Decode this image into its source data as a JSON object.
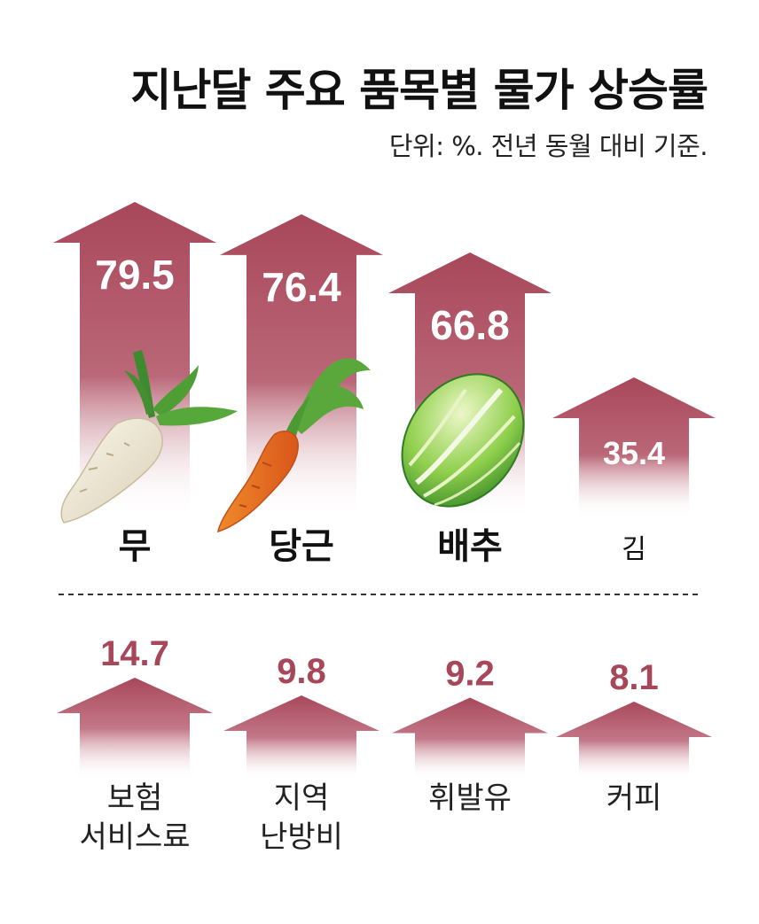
{
  "colors": {
    "arrow": "#a8475a",
    "value_bottom": "#a8475a",
    "text": "#111111"
  },
  "chart_data": [
    {
      "type": "bar",
      "title": "지난달 주요 품목별 물가 상승률",
      "subtitle": "단위: %. 전년 동월 대비 기준.",
      "categories": [
        "무",
        "당근",
        "배추",
        "김"
      ],
      "values": [
        79.5,
        76.4,
        66.8,
        35.4
      ],
      "icons": [
        "radish-icon",
        "carrot-icon",
        "napa-cabbage-icon",
        ""
      ]
    },
    {
      "type": "bar",
      "categories": [
        [
          "보험",
          "서비스료"
        ],
        [
          "지역",
          "난방비"
        ],
        [
          "휘발유"
        ],
        [
          "커피"
        ]
      ],
      "values": [
        14.7,
        9.8,
        9.2,
        8.1
      ]
    }
  ]
}
